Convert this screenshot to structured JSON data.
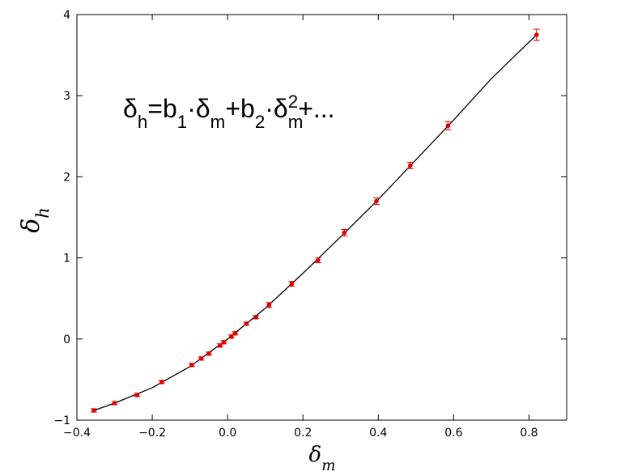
{
  "chart_data": {
    "type": "scatter",
    "xlabel": [
      {
        "text": "δ",
        "shift": "none"
      },
      {
        "text": "m",
        "shift": "sub"
      }
    ],
    "ylabel": [
      {
        "text": "δ",
        "shift": "none"
      },
      {
        "text": "h",
        "shift": "sub"
      }
    ],
    "annotation": [
      {
        "text": "δ",
        "shift": "none"
      },
      {
        "text": "h",
        "shift": "sub"
      },
      {
        "text": "=b",
        "shift": "none"
      },
      {
        "text": "1",
        "shift": "sub"
      },
      {
        "text": "·δ",
        "shift": "none"
      },
      {
        "text": "m",
        "shift": "sub"
      },
      {
        "text": "+b",
        "shift": "none"
      },
      {
        "text": "2",
        "shift": "sub"
      },
      {
        "text": "·δ",
        "shift": "none"
      },
      {
        "text": "m",
        "shift": "sub"
      },
      {
        "text": "2",
        "shift": "sup-stack"
      },
      {
        "text": "+...",
        "shift": "none"
      }
    ],
    "xlim": [
      -0.4,
      0.9
    ],
    "ylim": [
      -1,
      4
    ],
    "xticks": [
      {
        "value": -0.4,
        "label": "−0.4"
      },
      {
        "value": -0.2,
        "label": "−0.2"
      },
      {
        "value": 0,
        "label": "0.0"
      },
      0.2,
      0.4,
      0.6,
      0.8
    ],
    "yticks": [
      {
        "value": -1,
        "label": "−1"
      },
      0,
      1,
      2,
      3,
      4
    ],
    "series": [
      {
        "kind": "points",
        "color": "#e00000",
        "x": [
          -0.355,
          -0.3,
          -0.24,
          -0.175,
          -0.095,
          -0.07,
          -0.05,
          -0.02,
          -0.01,
          0.01,
          0.02,
          0.05,
          0.075,
          0.11,
          0.17,
          0.24,
          0.31,
          0.395,
          0.485,
          0.585,
          0.82
        ],
        "values": [
          -0.88,
          -0.79,
          -0.69,
          -0.53,
          -0.32,
          -0.24,
          -0.18,
          -0.08,
          -0.04,
          0.03,
          0.07,
          0.19,
          0.27,
          0.42,
          0.68,
          0.97,
          1.31,
          1.7,
          2.14,
          2.63,
          3.75
        ],
        "errors": [
          0.02,
          0.02,
          0.02,
          0.02,
          0.02,
          0.02,
          0.02,
          0.02,
          0.02,
          0.02,
          0.02,
          0.02,
          0.02,
          0.03,
          0.03,
          0.03,
          0.04,
          0.04,
          0.04,
          0.05,
          0.07
        ]
      },
      {
        "kind": "line",
        "color": "#000000",
        "x": [
          -0.36,
          -0.3,
          -0.2,
          -0.1,
          0,
          0.1,
          0.2,
          0.3,
          0.4,
          0.5,
          0.6,
          0.7,
          0.82
        ],
        "values": [
          -0.89,
          -0.79,
          -0.6,
          -0.34,
          0,
          0.38,
          0.81,
          1.26,
          1.72,
          2.21,
          2.7,
          3.21,
          3.75
        ]
      }
    ]
  }
}
